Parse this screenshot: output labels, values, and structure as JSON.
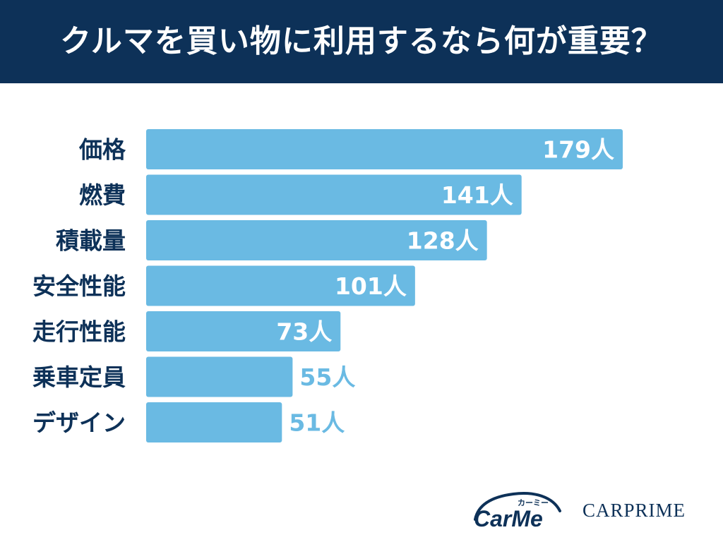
{
  "title": "クルマを買い物に利用するなら何が重要？",
  "chart_data": {
    "type": "bar",
    "orientation": "horizontal",
    "categories": [
      "価格",
      "燃費",
      "積載量",
      "安全性能",
      "走行性能",
      "乗車定員",
      "デザイン"
    ],
    "values": [
      179,
      141,
      128,
      101,
      73,
      55,
      51
    ],
    "value_labels": [
      "179人",
      "141人",
      "128人",
      "101人",
      "73人",
      "55人",
      "51人"
    ],
    "unit": "人",
    "xlim": [
      0,
      180
    ],
    "grid": false,
    "legend": "none"
  },
  "colors": {
    "header_bg": "#0d3158",
    "title_text": "#ffffff",
    "bar": "#6abae3",
    "category_text": "#0d3158",
    "label_inside": "#ffffff",
    "label_outside": "#6abae3"
  },
  "logos": {
    "carme_kana": "カーミー",
    "carme_text": "CarMe",
    "carprime_text": "CARPRIME"
  }
}
